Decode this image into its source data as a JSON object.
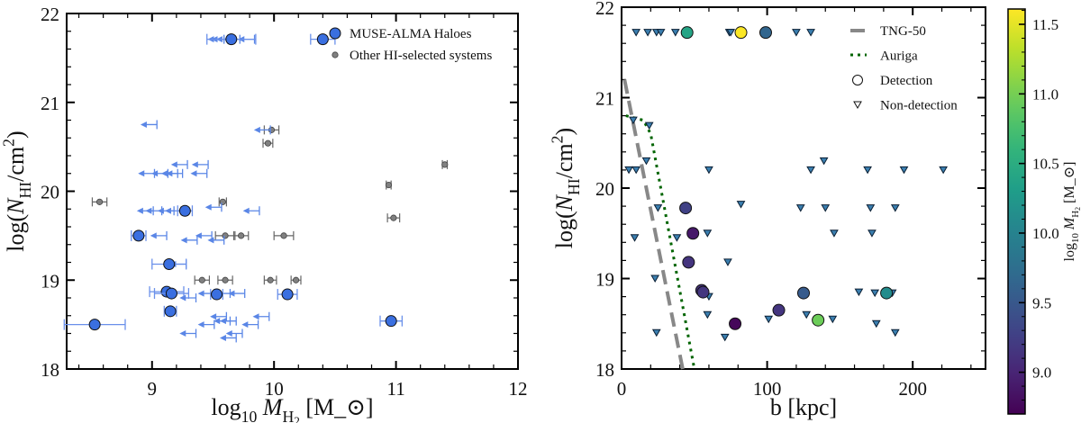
{
  "chart_data": [
    {
      "type": "scatter",
      "xlabel": "log_{10} *M*_{H_2} [M_⊙]",
      "ylabel": "log(*N*_{HI}/cm^{2})",
      "xlim": [
        8.3,
        12
      ],
      "ylim": [
        18,
        22
      ],
      "xticks": [
        9,
        10,
        11,
        12
      ],
      "yticks": [
        18,
        19,
        20,
        21,
        22
      ],
      "legend_placement": "top-right",
      "grid": false,
      "series": [
        {
          "name": "MUSE-ALMA Haloes",
          "marker": "circle",
          "color": "#3a6fe0",
          "points": [
            {
              "x": 9.65,
              "y": 21.71,
              "xerr": 0.2
            },
            {
              "x": 10.4,
              "y": 21.71,
              "xerr": 0.1
            },
            {
              "x": 9.27,
              "y": 19.78,
              "xerr": 0.06
            },
            {
              "x": 8.89,
              "y": 19.5,
              "xerr": 0.06
            },
            {
              "x": 9.14,
              "y": 19.18,
              "xerr": 0.14
            },
            {
              "x": 9.12,
              "y": 18.87,
              "xerr": 0.14
            },
            {
              "x": 9.16,
              "y": 18.85,
              "xerr": 0.14
            },
            {
              "x": 9.53,
              "y": 18.84,
              "xerr": 0.05
            },
            {
              "x": 10.11,
              "y": 18.84,
              "xerr": 0.08
            },
            {
              "x": 9.15,
              "y": 18.65,
              "xerr": 0.05
            },
            {
              "x": 8.53,
              "y": 18.5,
              "xerr": 0.25
            },
            {
              "x": 10.96,
              "y": 18.54,
              "xerr": 0.09
            }
          ],
          "upper_limits": [
            {
              "x": 9.55,
              "y": 21.71
            },
            {
              "x": 9.58,
              "y": 21.71
            },
            {
              "x": 9.62,
              "y": 21.71
            },
            {
              "x": 9.68,
              "y": 21.71
            },
            {
              "x": 9.8,
              "y": 21.71
            },
            {
              "x": 9.0,
              "y": 20.75
            },
            {
              "x": 9.93,
              "y": 20.69
            },
            {
              "x": 9.25,
              "y": 20.3
            },
            {
              "x": 9.42,
              "y": 20.3
            },
            {
              "x": 8.98,
              "y": 20.2
            },
            {
              "x": 9.09,
              "y": 20.2
            },
            {
              "x": 9.17,
              "y": 20.2
            },
            {
              "x": 9.21,
              "y": 20.2
            },
            {
              "x": 9.41,
              "y": 20.2
            },
            {
              "x": 8.97,
              "y": 19.78
            },
            {
              "x": 9.04,
              "y": 19.78
            },
            {
              "x": 9.14,
              "y": 19.78
            },
            {
              "x": 9.2,
              "y": 19.78
            },
            {
              "x": 9.53,
              "y": 19.82
            },
            {
              "x": 9.84,
              "y": 19.78
            },
            {
              "x": 9.08,
              "y": 19.5
            },
            {
              "x": 9.45,
              "y": 19.5
            },
            {
              "x": 9.33,
              "y": 19.45
            },
            {
              "x": 9.55,
              "y": 19.45
            },
            {
              "x": 9.24,
              "y": 19.18
            },
            {
              "x": 9.47,
              "y": 18.85
            },
            {
              "x": 9.6,
              "y": 18.85
            },
            {
              "x": 9.72,
              "y": 18.85
            },
            {
              "x": 9.32,
              "y": 18.8
            },
            {
              "x": 9.57,
              "y": 18.59
            },
            {
              "x": 9.92,
              "y": 18.59
            },
            {
              "x": 9.6,
              "y": 18.54
            },
            {
              "x": 9.65,
              "y": 18.54
            },
            {
              "x": 9.47,
              "y": 18.5
            },
            {
              "x": 9.83,
              "y": 18.5
            },
            {
              "x": 9.32,
              "y": 18.4
            },
            {
              "x": 9.7,
              "y": 18.4
            },
            {
              "x": 9.65,
              "y": 18.35
            }
          ]
        },
        {
          "name": "Other HI-selected systems",
          "marker": "small-circle",
          "color": "#808080",
          "points": [
            {
              "x": 8.57,
              "y": 19.88,
              "xerr": 0.06
            },
            {
              "x": 9.98,
              "y": 20.69,
              "xerr": 0.06
            },
            {
              "x": 9.95,
              "y": 20.54,
              "xerr": 0.04
            },
            {
              "x": 11.4,
              "y": 20.3,
              "xerr": 0.02
            },
            {
              "x": 10.94,
              "y": 20.07,
              "xerr": 0.02
            },
            {
              "x": 9.58,
              "y": 19.88,
              "xerr": 0.03
            },
            {
              "x": 10.98,
              "y": 19.7,
              "xerr": 0.05
            },
            {
              "x": 9.6,
              "y": 19.5,
              "xerr": 0.08
            },
            {
              "x": 9.73,
              "y": 19.5,
              "xerr": 0.06
            },
            {
              "x": 10.08,
              "y": 19.5,
              "xerr": 0.08
            },
            {
              "x": 9.41,
              "y": 19.0,
              "xerr": 0.06
            },
            {
              "x": 9.6,
              "y": 19.0,
              "xerr": 0.06
            },
            {
              "x": 9.97,
              "y": 19.0,
              "xerr": 0.05
            },
            {
              "x": 10.18,
              "y": 19.0,
              "xerr": 0.04
            }
          ]
        }
      ]
    },
    {
      "type": "scatter",
      "xlabel": "b [kpc]",
      "ylabel": "log(*N*_{HI}/cm^{2})",
      "xlim": [
        0,
        250
      ],
      "ylim": [
        18,
        22
      ],
      "xticks": [
        0,
        100,
        200
      ],
      "yticks": [
        18,
        19,
        20,
        21,
        22
      ],
      "legend_placement": "top-right",
      "grid": false,
      "colorbar": {
        "label": "log_{10} *M*_{H_2} [M_⊙]",
        "range": [
          8.7,
          11.61
        ],
        "ticks": [
          "9.0",
          "9.5",
          "10.0",
          "10.5",
          "11.0",
          "11.5"
        ],
        "colormap": "viridis"
      },
      "legend": [
        {
          "name": "TNG-50",
          "style": "dashed-line",
          "color": "#808080"
        },
        {
          "name": "Auriga",
          "style": "dotted-line",
          "color": "#006400"
        },
        {
          "name": "Detection",
          "style": "open-circle"
        },
        {
          "name": "Non-detection",
          "style": "open-triangle-down"
        }
      ],
      "models": [
        {
          "name": "TNG-50",
          "points": [
            [
              2,
              21.2
            ],
            [
              42,
              18
            ]
          ]
        },
        {
          "name": "Auriga",
          "points": [
            [
              3,
              20.8
            ],
            [
              15,
              20.75
            ],
            [
              20,
              20.6
            ],
            [
              50,
              18
            ]
          ]
        }
      ],
      "detections": [
        {
          "b": 45,
          "y": 21.72,
          "c": 10.4
        },
        {
          "b": 82,
          "y": 21.72,
          "c": 11.6
        },
        {
          "b": 99,
          "y": 21.72,
          "c": 9.65
        },
        {
          "b": 44,
          "y": 19.78,
          "c": 9.27
        },
        {
          "b": 49,
          "y": 19.5,
          "c": 8.89
        },
        {
          "b": 46,
          "y": 19.18,
          "c": 9.14
        },
        {
          "b": 55,
          "y": 18.87,
          "c": 9.12
        },
        {
          "b": 56,
          "y": 18.85,
          "c": 9.16
        },
        {
          "b": 78,
          "y": 18.5,
          "c": 8.75
        },
        {
          "b": 108,
          "y": 18.65,
          "c": 9.15
        },
        {
          "b": 125,
          "y": 18.84,
          "c": 9.53
        },
        {
          "b": 135,
          "y": 18.54,
          "c": 10.96
        },
        {
          "b": 182,
          "y": 18.84,
          "c": 10.11
        }
      ],
      "non_detections": [
        {
          "b": 10,
          "y": 21.72
        },
        {
          "b": 18,
          "y": 21.72
        },
        {
          "b": 24,
          "y": 21.72
        },
        {
          "b": 27,
          "y": 21.72
        },
        {
          "b": 37,
          "y": 21.72
        },
        {
          "b": 74,
          "y": 21.72
        },
        {
          "b": 75,
          "y": 21.72
        },
        {
          "b": 120,
          "y": 21.72
        },
        {
          "b": 130,
          "y": 21.72
        },
        {
          "b": 8,
          "y": 20.75
        },
        {
          "b": 19,
          "y": 20.69
        },
        {
          "b": 17,
          "y": 20.3
        },
        {
          "b": 139,
          "y": 20.3
        },
        {
          "b": 5,
          "y": 20.2
        },
        {
          "b": 10,
          "y": 20.2
        },
        {
          "b": 60,
          "y": 20.2
        },
        {
          "b": 130,
          "y": 20.2
        },
        {
          "b": 169,
          "y": 20.2
        },
        {
          "b": 194,
          "y": 20.2
        },
        {
          "b": 221,
          "y": 20.2
        },
        {
          "b": 82,
          "y": 19.82
        },
        {
          "b": 25,
          "y": 19.78
        },
        {
          "b": 123,
          "y": 19.78
        },
        {
          "b": 140,
          "y": 19.78
        },
        {
          "b": 171,
          "y": 19.78
        },
        {
          "b": 188,
          "y": 19.78
        },
        {
          "b": 9,
          "y": 19.45
        },
        {
          "b": 38,
          "y": 19.45
        },
        {
          "b": 59,
          "y": 19.5
        },
        {
          "b": 146,
          "y": 19.5
        },
        {
          "b": 172,
          "y": 19.5
        },
        {
          "b": 73,
          "y": 19.18
        },
        {
          "b": 23,
          "y": 19.0
        },
        {
          "b": 163,
          "y": 18.85
        },
        {
          "b": 174,
          "y": 18.84
        },
        {
          "b": 186,
          "y": 18.84
        },
        {
          "b": 60,
          "y": 18.8
        },
        {
          "b": 59,
          "y": 18.6
        },
        {
          "b": 127,
          "y": 18.6
        },
        {
          "b": 101,
          "y": 18.55
        },
        {
          "b": 145,
          "y": 18.55
        },
        {
          "b": 175,
          "y": 18.5
        },
        {
          "b": 24,
          "y": 18.4
        },
        {
          "b": 188,
          "y": 18.4
        },
        {
          "b": 71,
          "y": 18.35
        }
      ]
    }
  ]
}
